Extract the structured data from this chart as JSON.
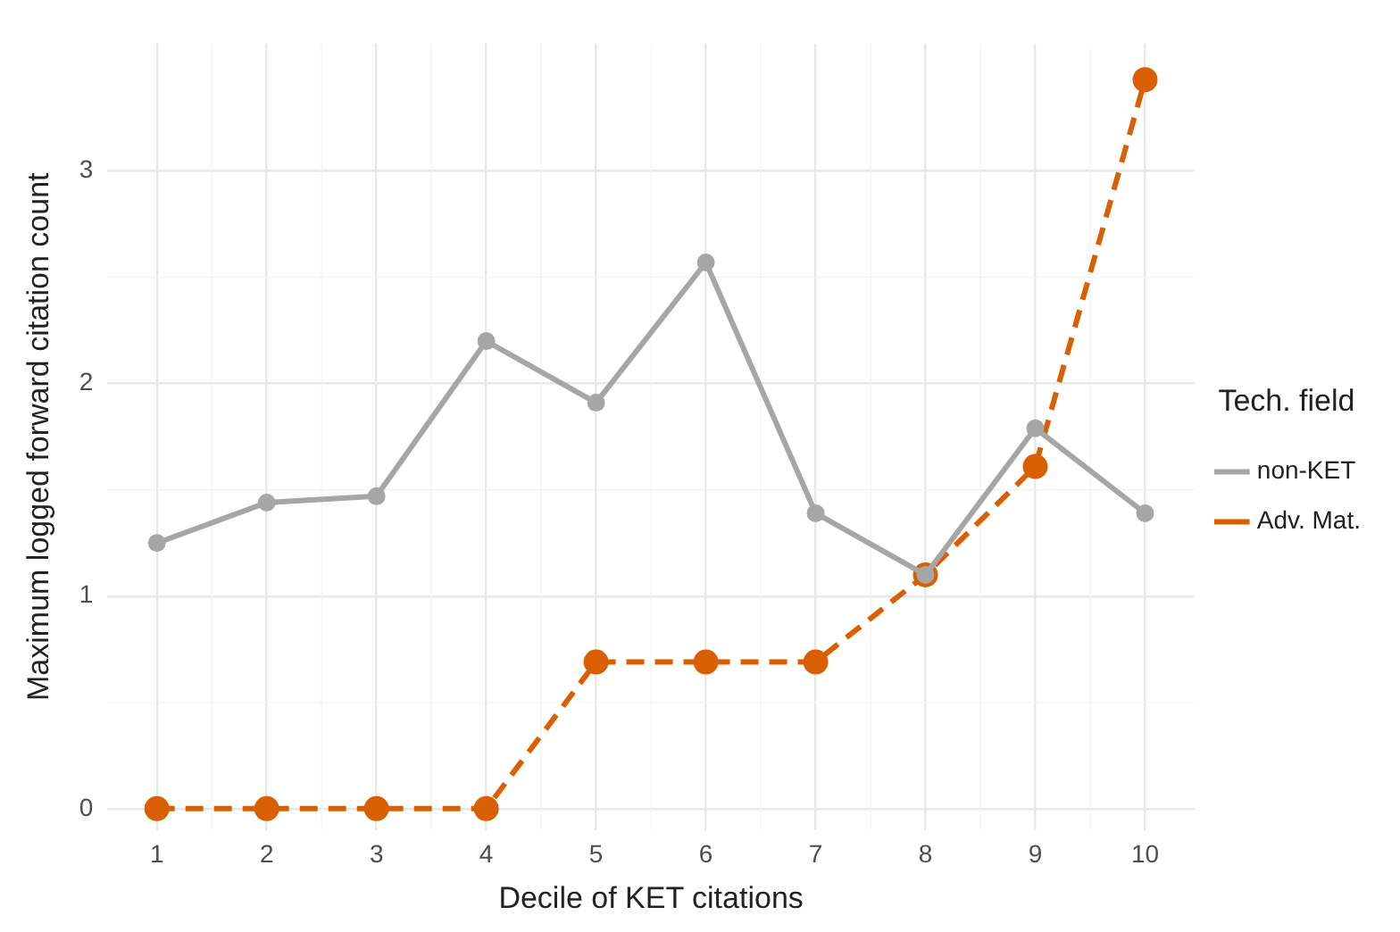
{
  "chart_data": {
    "type": "line",
    "xlabel": "Decile of KET citations",
    "ylabel": "Maximum logged forward citation count",
    "legend_title": "Tech. field",
    "x": [
      1,
      2,
      3,
      4,
      5,
      6,
      7,
      8,
      9,
      10
    ],
    "series": [
      {
        "name": "non-KET",
        "color": "#a6a6a6",
        "values": [
          1.25,
          1.44,
          1.47,
          2.2,
          1.91,
          2.57,
          1.39,
          1.1,
          1.79,
          1.39
        ],
        "line_style": "solid"
      },
      {
        "name": "Adv. Mat.",
        "color": "#d95f02",
        "values": [
          0,
          0,
          0,
          0,
          0.69,
          0.69,
          0.69,
          1.1,
          1.61,
          3.43
        ],
        "line_style": "dashed"
      }
    ],
    "xlim": [
      0.55,
      10.45
    ],
    "xticks": [
      1,
      2,
      3,
      4,
      5,
      6,
      7,
      8,
      9,
      10
    ],
    "ylim": [
      -0.1,
      3.6
    ],
    "yticks": [
      0,
      1,
      2,
      3
    ],
    "grid": true,
    "legend": "right",
    "marker": "circle"
  }
}
